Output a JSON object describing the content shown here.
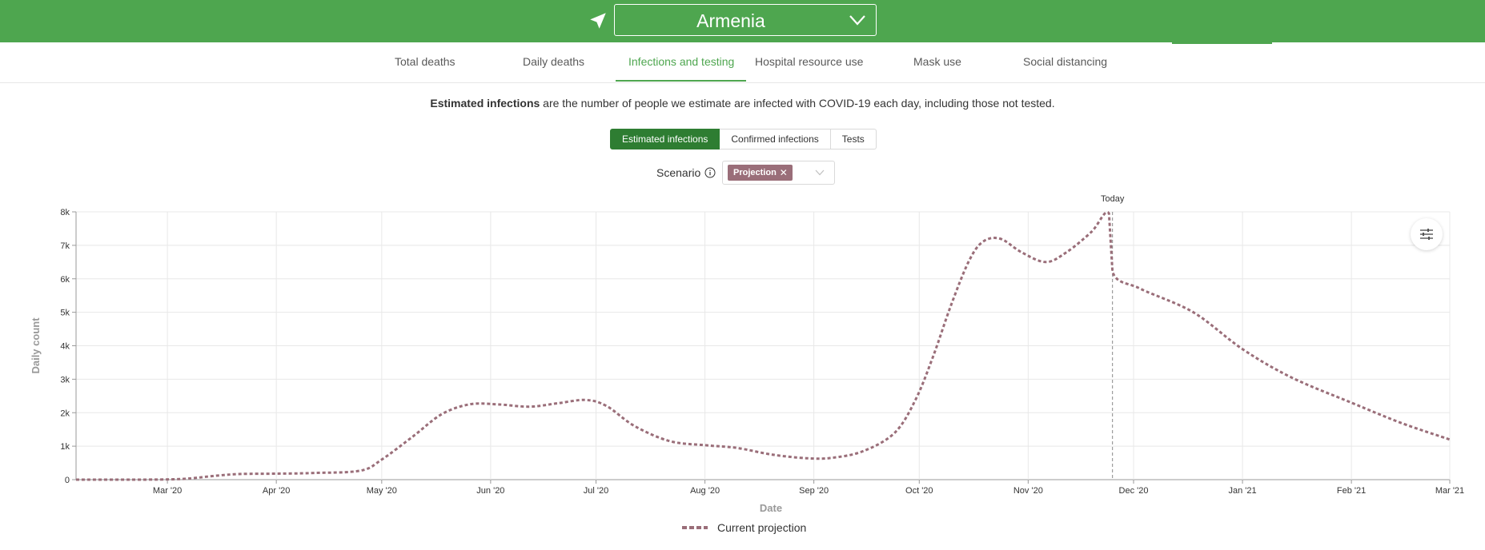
{
  "header": {
    "country": "Armenia",
    "location_icon": "navigation-arrow-icon",
    "chevron_icon": "chevron-down-icon",
    "color": "#4ea64f"
  },
  "tabs": [
    {
      "label": "Total deaths",
      "active": false
    },
    {
      "label": "Daily deaths",
      "active": false
    },
    {
      "label": "Infections and testing",
      "active": true
    },
    {
      "label": "Hospital resource use",
      "active": false
    },
    {
      "label": "Mask use",
      "active": false
    },
    {
      "label": "Social distancing",
      "active": false
    }
  ],
  "description": {
    "bold": "Estimated infections",
    "rest": " are the number of people we estimate are infected with COVID-19 each day, including those not tested."
  },
  "metric_toggle": {
    "options": [
      "Estimated infections",
      "Confirmed infections",
      "Tests"
    ],
    "selected": "Estimated infections"
  },
  "scenario": {
    "label": "Scenario",
    "info_icon": "info-circle-icon",
    "selected_tag": "Projection",
    "close_icon": "close-icon",
    "tag_color": "#9a6e79"
  },
  "settings_icon": "sliders-icon",
  "chart_data": {
    "type": "line",
    "xlabel": "Date",
    "ylabel": "Daily count",
    "x_ticks": [
      "Mar '20",
      "Apr '20",
      "May '20",
      "Jun '20",
      "Jul '20",
      "Aug '20",
      "Sep '20",
      "Oct '20",
      "Nov '20",
      "Dec '20",
      "Jan '21",
      "Feb '21",
      "Mar '21"
    ],
    "y_ticks": [
      "0",
      "1k",
      "2k",
      "3k",
      "4k",
      "5k",
      "6k",
      "7k",
      "8k"
    ],
    "xlim": [
      "2020-02-04",
      "2021-03-01"
    ],
    "ylim": [
      0,
      8000
    ],
    "grid": true,
    "today": {
      "label": "Today",
      "date": "2020-11-25"
    },
    "series": [
      {
        "name": "Current projection",
        "color": "#9a6e79",
        "style": "dashed",
        "points": [
          [
            "2020-02-04",
            0
          ],
          [
            "2020-02-20",
            0
          ],
          [
            "2020-03-05",
            20
          ],
          [
            "2020-03-15",
            120
          ],
          [
            "2020-03-22",
            170
          ],
          [
            "2020-04-01",
            180
          ],
          [
            "2020-04-12",
            200
          ],
          [
            "2020-04-25",
            270
          ],
          [
            "2020-05-01",
            600
          ],
          [
            "2020-05-10",
            1300
          ],
          [
            "2020-05-18",
            1950
          ],
          [
            "2020-05-26",
            2250
          ],
          [
            "2020-06-03",
            2250
          ],
          [
            "2020-06-12",
            2180
          ],
          [
            "2020-06-20",
            2280
          ],
          [
            "2020-06-28",
            2380
          ],
          [
            "2020-07-04",
            2200
          ],
          [
            "2020-07-12",
            1600
          ],
          [
            "2020-07-22",
            1150
          ],
          [
            "2020-08-01",
            1030
          ],
          [
            "2020-08-10",
            950
          ],
          [
            "2020-08-20",
            750
          ],
          [
            "2020-08-30",
            640
          ],
          [
            "2020-09-06",
            650
          ],
          [
            "2020-09-15",
            850
          ],
          [
            "2020-09-24",
            1400
          ],
          [
            "2020-09-30",
            2400
          ],
          [
            "2020-10-05",
            3700
          ],
          [
            "2020-10-10",
            5200
          ],
          [
            "2020-10-15",
            6500
          ],
          [
            "2020-10-19",
            7100
          ],
          [
            "2020-10-24",
            7200
          ],
          [
            "2020-10-30",
            6800
          ],
          [
            "2020-11-06",
            6500
          ],
          [
            "2020-11-12",
            6800
          ],
          [
            "2020-11-19",
            7400
          ],
          [
            "2020-11-24",
            7950
          ],
          [
            "2020-11-25",
            6200
          ],
          [
            "2020-12-03",
            5700
          ],
          [
            "2020-12-18",
            5000
          ],
          [
            "2021-01-01",
            3900
          ],
          [
            "2021-01-15",
            3050
          ],
          [
            "2021-02-01",
            2300
          ],
          [
            "2021-02-15",
            1700
          ],
          [
            "2021-03-01",
            1200
          ]
        ]
      }
    ]
  }
}
